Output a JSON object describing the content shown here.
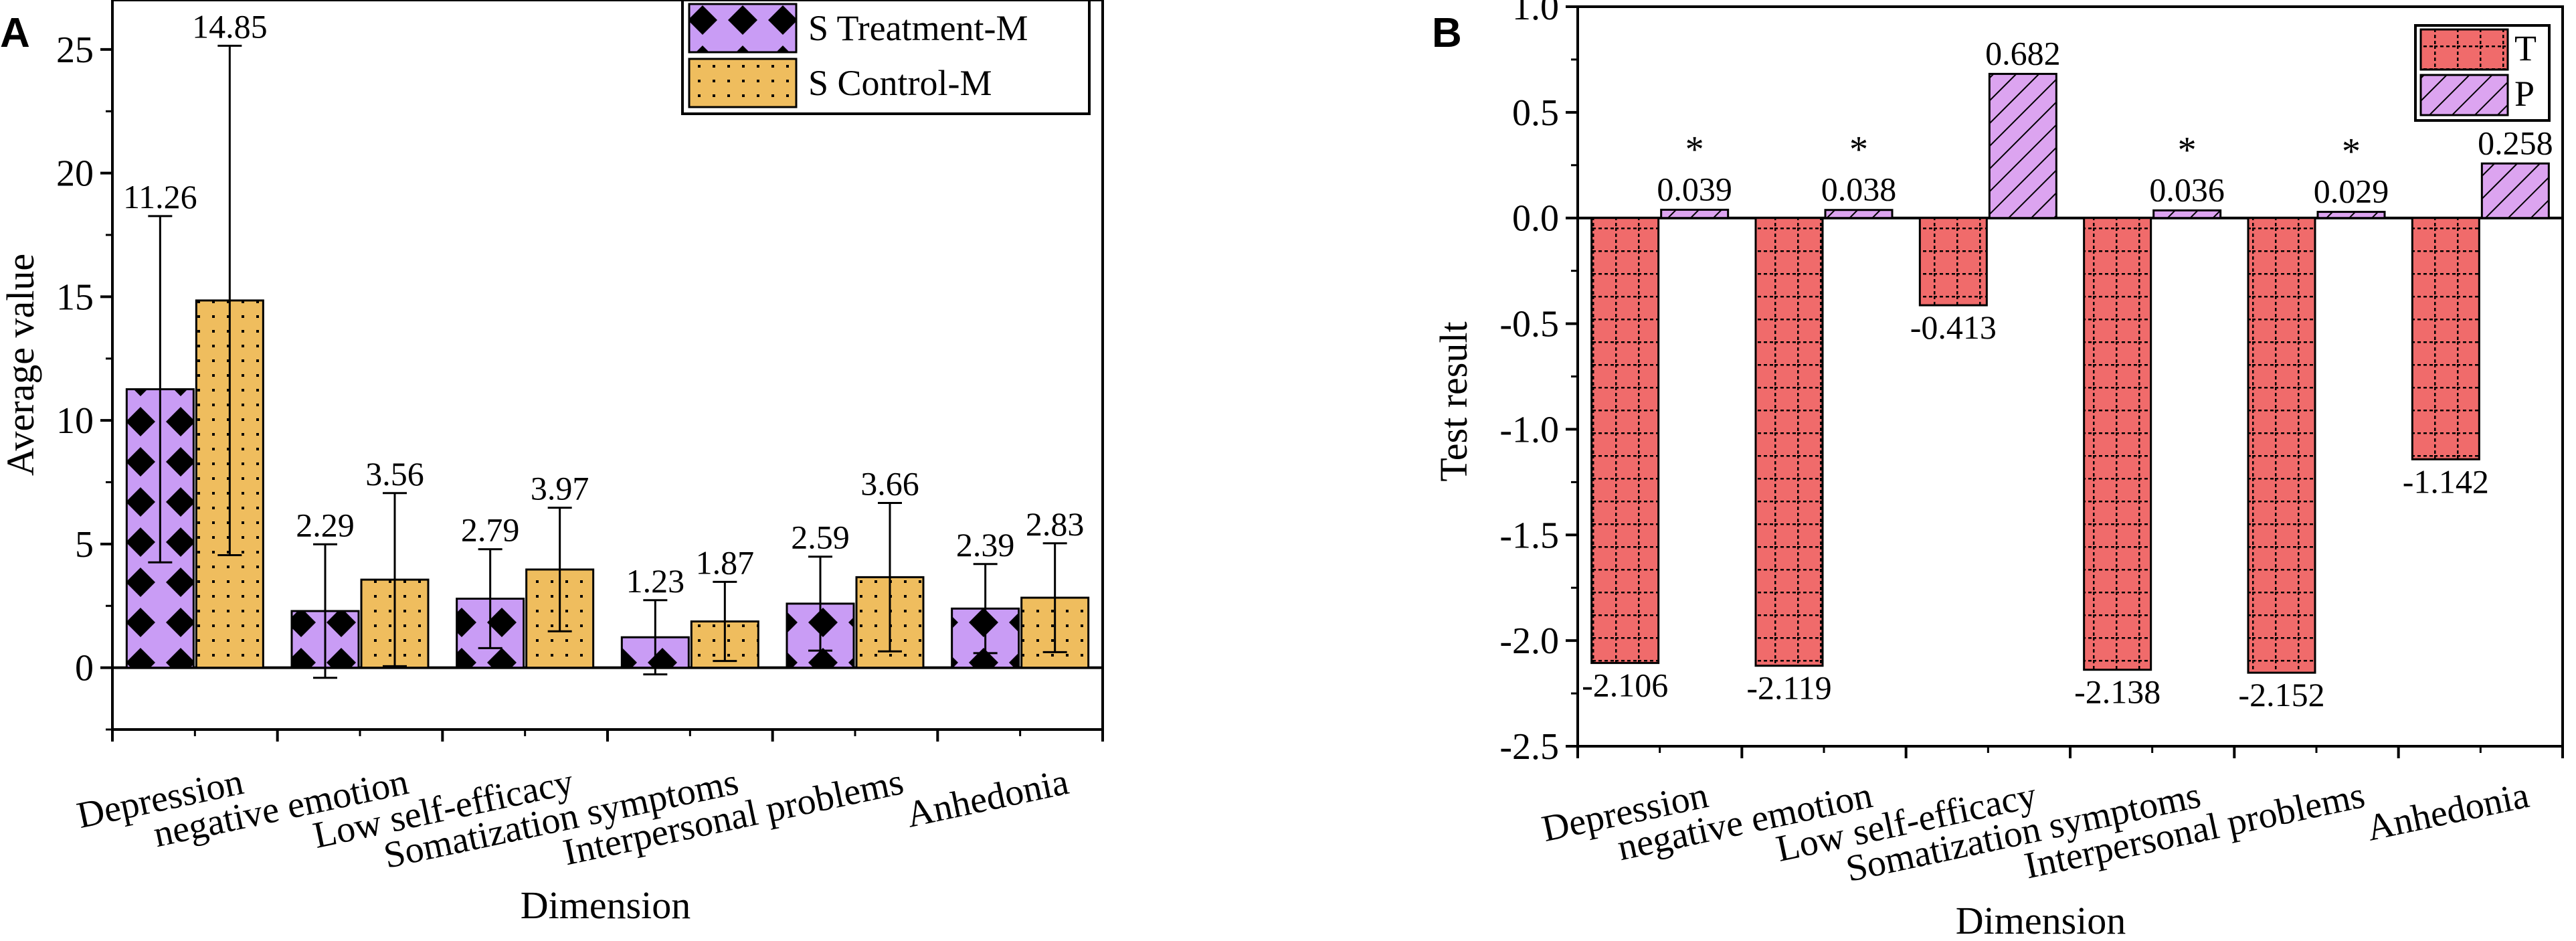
{
  "colors": {
    "treatment": "#c99cf5",
    "control": "#efbd5e",
    "t_bar": "#f06b6b",
    "p_bar": "#dca4f0",
    "axis": "#000000"
  },
  "chart_data": [
    {
      "type": "bar",
      "panel": "A",
      "xlabel": "Dimension",
      "ylabel": "Average value",
      "ylim": [
        -2.5,
        27
      ],
      "yticks": [
        0,
        5,
        10,
        15,
        20,
        25
      ],
      "ytick_labels": [
        "0",
        "5",
        "10",
        "15",
        "20",
        "25"
      ],
      "categories": [
        "Depression",
        "negative emotion",
        "Low self-efficacy",
        "Somatization symptoms",
        "Interpersonal problems",
        "Anhedonia"
      ],
      "series": [
        {
          "name": "S  Treatment-M",
          "values": [
            11.26,
            2.29,
            2.79,
            1.23,
            2.59,
            2.39
          ],
          "labels": [
            "11.26",
            "2.29",
            "2.79",
            "1.23",
            "2.59",
            "2.39"
          ],
          "error": [
            7.0,
            2.7,
            2.0,
            1.5,
            1.9,
            1.8
          ],
          "pattern": "diamonds"
        },
        {
          "name": "S  Control-M",
          "values": [
            14.85,
            3.56,
            3.97,
            1.87,
            3.66,
            2.83
          ],
          "labels": [
            "14.85",
            "3.56",
            "3.97",
            "1.87",
            "3.66",
            "2.83"
          ],
          "error": [
            10.3,
            3.5,
            2.5,
            1.6,
            3.0,
            2.2
          ],
          "pattern": "dots"
        }
      ],
      "legend_position": "top-right"
    },
    {
      "type": "bar",
      "panel": "B",
      "xlabel": "Dimension",
      "ylabel": "Test result",
      "ylim": [
        -2.5,
        1.0
      ],
      "yticks": [
        -2.5,
        -2.0,
        -1.5,
        -1.0,
        -0.5,
        0.0,
        0.5,
        1.0
      ],
      "ytick_labels": [
        "-2.5",
        "-2.0",
        "-1.5",
        "-1.0",
        "-0.5",
        "0.0",
        "0.5",
        "1.0"
      ],
      "categories": [
        "Depression",
        "negative emotion",
        "Low self-efficacy",
        "Somatization symptoms",
        "Interpersonal problems",
        "Anhedonia"
      ],
      "series": [
        {
          "name": "T",
          "values": [
            -2.106,
            -2.119,
            -0.413,
            -2.138,
            -2.152,
            -1.142
          ],
          "labels": [
            "-2.106",
            "-2.119",
            "-0.413",
            "-2.138",
            "-2.152",
            "-1.142"
          ],
          "pattern": "grid"
        },
        {
          "name": "P",
          "values": [
            0.039,
            0.038,
            0.682,
            0.036,
            0.029,
            0.258
          ],
          "labels": [
            "0.039",
            "0.038",
            "0.682",
            "0.036",
            "0.029",
            "0.258"
          ],
          "pattern": "hatch"
        }
      ],
      "significance": [
        "*",
        "*",
        "",
        "*",
        "*",
        ""
      ],
      "legend_position": "top-right"
    }
  ]
}
